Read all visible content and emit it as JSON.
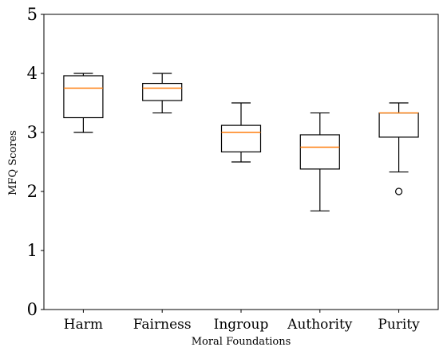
{
  "chart_data": {
    "type": "boxplot",
    "title": "",
    "xlabel": "Moral Foundations",
    "ylabel": "MFQ Scores",
    "ylim": [
      0,
      5
    ],
    "yticks": [
      0,
      1,
      2,
      3,
      4,
      5
    ],
    "grid": false,
    "categories": [
      "Harm",
      "Fairness",
      "Ingroup",
      "Authority",
      "Purity"
    ],
    "boxes": [
      {
        "whisker_low": 3.0,
        "q1": 3.25,
        "median": 3.75,
        "q3": 3.96,
        "whisker_high": 4.0,
        "outliers": []
      },
      {
        "whisker_low": 3.33,
        "q1": 3.54,
        "median": 3.75,
        "q3": 3.83,
        "whisker_high": 4.0,
        "outliers": []
      },
      {
        "whisker_low": 2.5,
        "q1": 2.67,
        "median": 3.0,
        "q3": 3.12,
        "whisker_high": 3.5,
        "outliers": []
      },
      {
        "whisker_low": 1.67,
        "q1": 2.38,
        "median": 2.75,
        "q3": 2.96,
        "whisker_high": 3.33,
        "outliers": []
      },
      {
        "whisker_low": 2.33,
        "q1": 2.92,
        "median": 3.33,
        "q3": 3.33,
        "whisker_high": 3.5,
        "outliers": [
          2.0
        ]
      }
    ],
    "colors": {
      "box": "#000000",
      "median": "#ff7f0e"
    }
  }
}
